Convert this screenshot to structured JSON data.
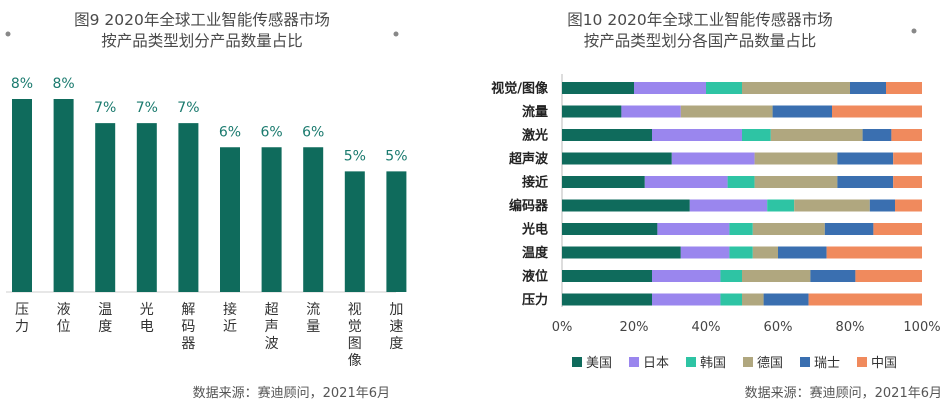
{
  "chart_data": [
    {
      "type": "bar",
      "title_lines": [
        "图9 2020年全球工业智能传感器市场",
        "按产品类型划分产品数量占比"
      ],
      "categories": [
        "压力",
        "液位",
        "温度",
        "光电",
        "解码器",
        "接近",
        "超声波",
        "流量",
        "视觉图像",
        "加速度"
      ],
      "values": [
        8,
        8,
        7,
        7,
        7,
        6,
        6,
        6,
        5,
        5
      ],
      "value_labels": [
        "8%",
        "8%",
        "7%",
        "7%",
        "7%",
        "6%",
        "6%",
        "6%",
        "5%",
        "5%"
      ],
      "ylim": [
        0,
        8.2
      ],
      "color": "#0f6b5c",
      "source": "数据来源：赛迪顾问，2021年6月"
    },
    {
      "type": "bar",
      "orientation": "horizontal-stacked-percent",
      "title_lines": [
        "图10 2020年全球工业智能传感器市场",
        "按产品类型划分各国产品数量占比"
      ],
      "categories": [
        "视觉/图像",
        "流量",
        "激光",
        "超声波",
        "接近",
        "编码器",
        "光电",
        "温度",
        "液位",
        "压力"
      ],
      "series": [
        {
          "name": "美国",
          "color": "#0f6b5c",
          "values": [
            20,
            16.5,
            25,
            30.5,
            23,
            35.5,
            26.5,
            33,
            25,
            25
          ]
        },
        {
          "name": "日本",
          "color": "#9a86ee",
          "values": [
            20,
            16.5,
            25,
            23,
            23,
            21.5,
            20,
            13.5,
            19,
            19
          ]
        },
        {
          "name": "韩国",
          "color": "#2ec4a4",
          "values": [
            10,
            0,
            8,
            0,
            7.5,
            7.5,
            6.5,
            6.5,
            6,
            6
          ]
        },
        {
          "name": "德国",
          "color": "#b0a77f",
          "values": [
            30,
            25.5,
            25.5,
            23,
            23,
            21,
            20,
            7,
            19,
            6
          ]
        },
        {
          "name": "瑞士",
          "color": "#3a6fb0",
          "values": [
            10,
            16.5,
            8,
            15.5,
            15.5,
            7,
            13.5,
            13.5,
            12.5,
            12.5
          ]
        },
        {
          "name": "中国",
          "color": "#f08a5d",
          "values": [
            10,
            25,
            8.5,
            8,
            8,
            7.5,
            13.5,
            26.5,
            18.5,
            31.5
          ]
        }
      ],
      "xlim": [
        0,
        100
      ],
      "xticks": [
        "0%",
        "20%",
        "40%",
        "60%",
        "80%",
        "100%"
      ],
      "source": "数据来源：赛迪顾问，2021年6月"
    }
  ]
}
